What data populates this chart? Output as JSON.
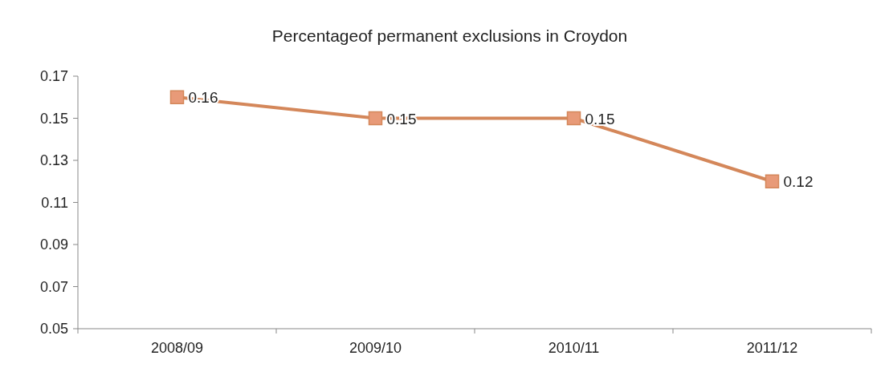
{
  "chart_data": {
    "type": "line",
    "title": "Percentageof permanent exclusions in Croydon",
    "categories": [
      "2008/09",
      "2009/10",
      "2010/11",
      "2011/12"
    ],
    "series": [
      {
        "color": "#d4875a",
        "values": [
          0.16,
          0.15,
          0.15,
          0.12
        ]
      }
    ],
    "ylim": [
      0.05,
      0.17
    ],
    "yticks": [
      {
        "value": 0.05,
        "label": "0.05"
      },
      {
        "value": 0.07,
        "label": "0.07"
      },
      {
        "value": 0.09,
        "label": "0.09"
      },
      {
        "value": 0.11,
        "label": "0.11"
      },
      {
        "value": 0.13,
        "label": "0.13"
      },
      {
        "value": 0.15,
        "label": "0.15"
      },
      {
        "value": 0.17,
        "label": "0.17"
      }
    ],
    "data_labels": true,
    "marker": "square",
    "grid": false
  }
}
